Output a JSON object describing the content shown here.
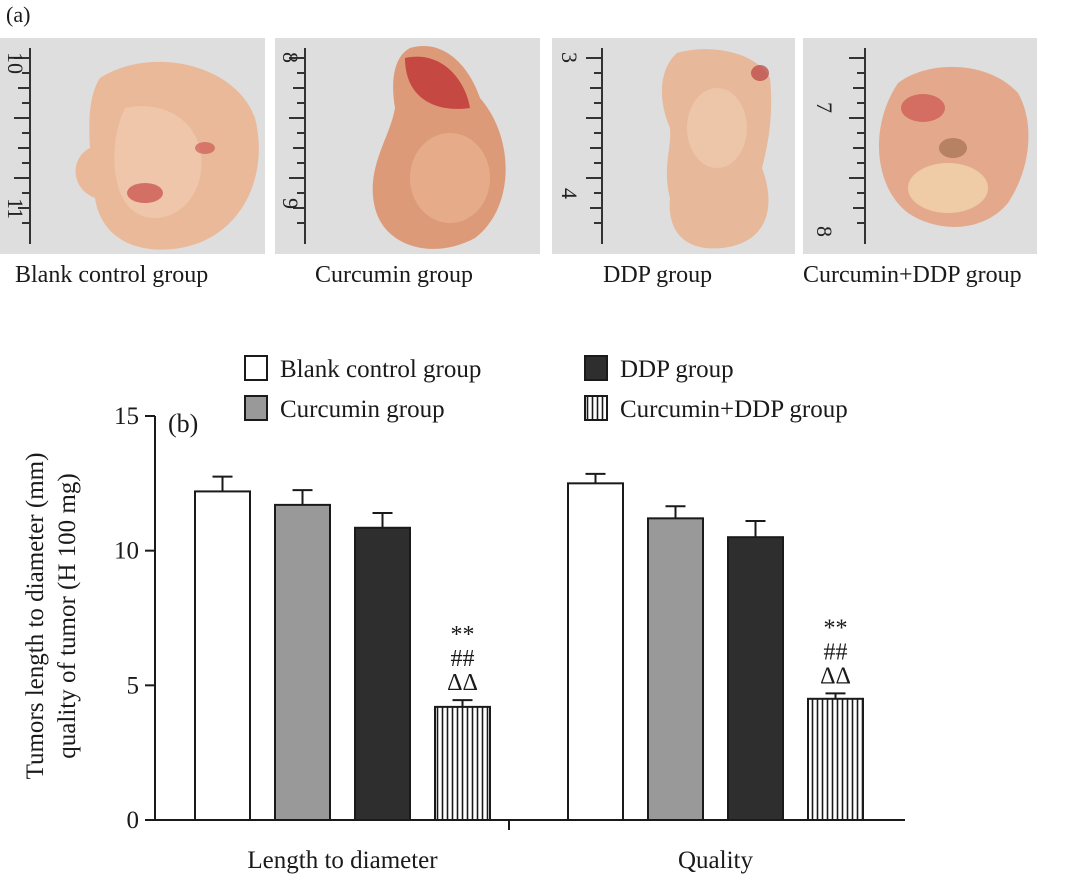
{
  "panel_a_label": "(a)",
  "photos": [
    {
      "caption": "Blank control group",
      "ruler_marks": [
        "10",
        "11"
      ]
    },
    {
      "caption": "Curcumin group",
      "ruler_marks": [
        "8",
        "9"
      ]
    },
    {
      "caption": "DDP group",
      "ruler_marks": [
        "3",
        "4"
      ]
    },
    {
      "caption": "Curcumin+DDP group",
      "ruler_marks": [
        "7",
        "8"
      ]
    }
  ],
  "chart_data": {
    "type": "bar",
    "panel_label": "(b)",
    "categories": [
      "Length to diameter",
      "Quality"
    ],
    "ylabel_line1": "Tumors length to diameter (mm)",
    "ylabel_line2": "quality of tumor (H 100 mg)",
    "ylim": [
      0,
      15
    ],
    "yticks": [
      0,
      5,
      10,
      15
    ],
    "legend_position": "top",
    "series": [
      {
        "name": "Blank control group",
        "fill": "#ffffff",
        "pattern": "none",
        "values": [
          12.2,
          12.5
        ],
        "errors": [
          0.55,
          0.35
        ]
      },
      {
        "name": "Curcumin group",
        "fill": "#999999",
        "pattern": "none",
        "values": [
          11.7,
          11.2
        ],
        "errors": [
          0.55,
          0.45
        ]
      },
      {
        "name": "DDP group",
        "fill": "#2e2e2e",
        "pattern": "none",
        "values": [
          10.85,
          10.5
        ],
        "errors": [
          0.55,
          0.6
        ]
      },
      {
        "name": "Curcumin+DDP group",
        "fill": "#ffffff",
        "pattern": "vertical-lines",
        "values": [
          4.2,
          4.5
        ],
        "errors": [
          0.25,
          0.2
        ]
      }
    ],
    "annotations": [
      {
        "category": "Length to diameter",
        "series": "Curcumin+DDP group",
        "lines": [
          "**",
          "##",
          "ΔΔ"
        ]
      },
      {
        "category": "Quality",
        "series": "Curcumin+DDP group",
        "lines": [
          "**",
          "##",
          "ΔΔ"
        ]
      }
    ]
  }
}
